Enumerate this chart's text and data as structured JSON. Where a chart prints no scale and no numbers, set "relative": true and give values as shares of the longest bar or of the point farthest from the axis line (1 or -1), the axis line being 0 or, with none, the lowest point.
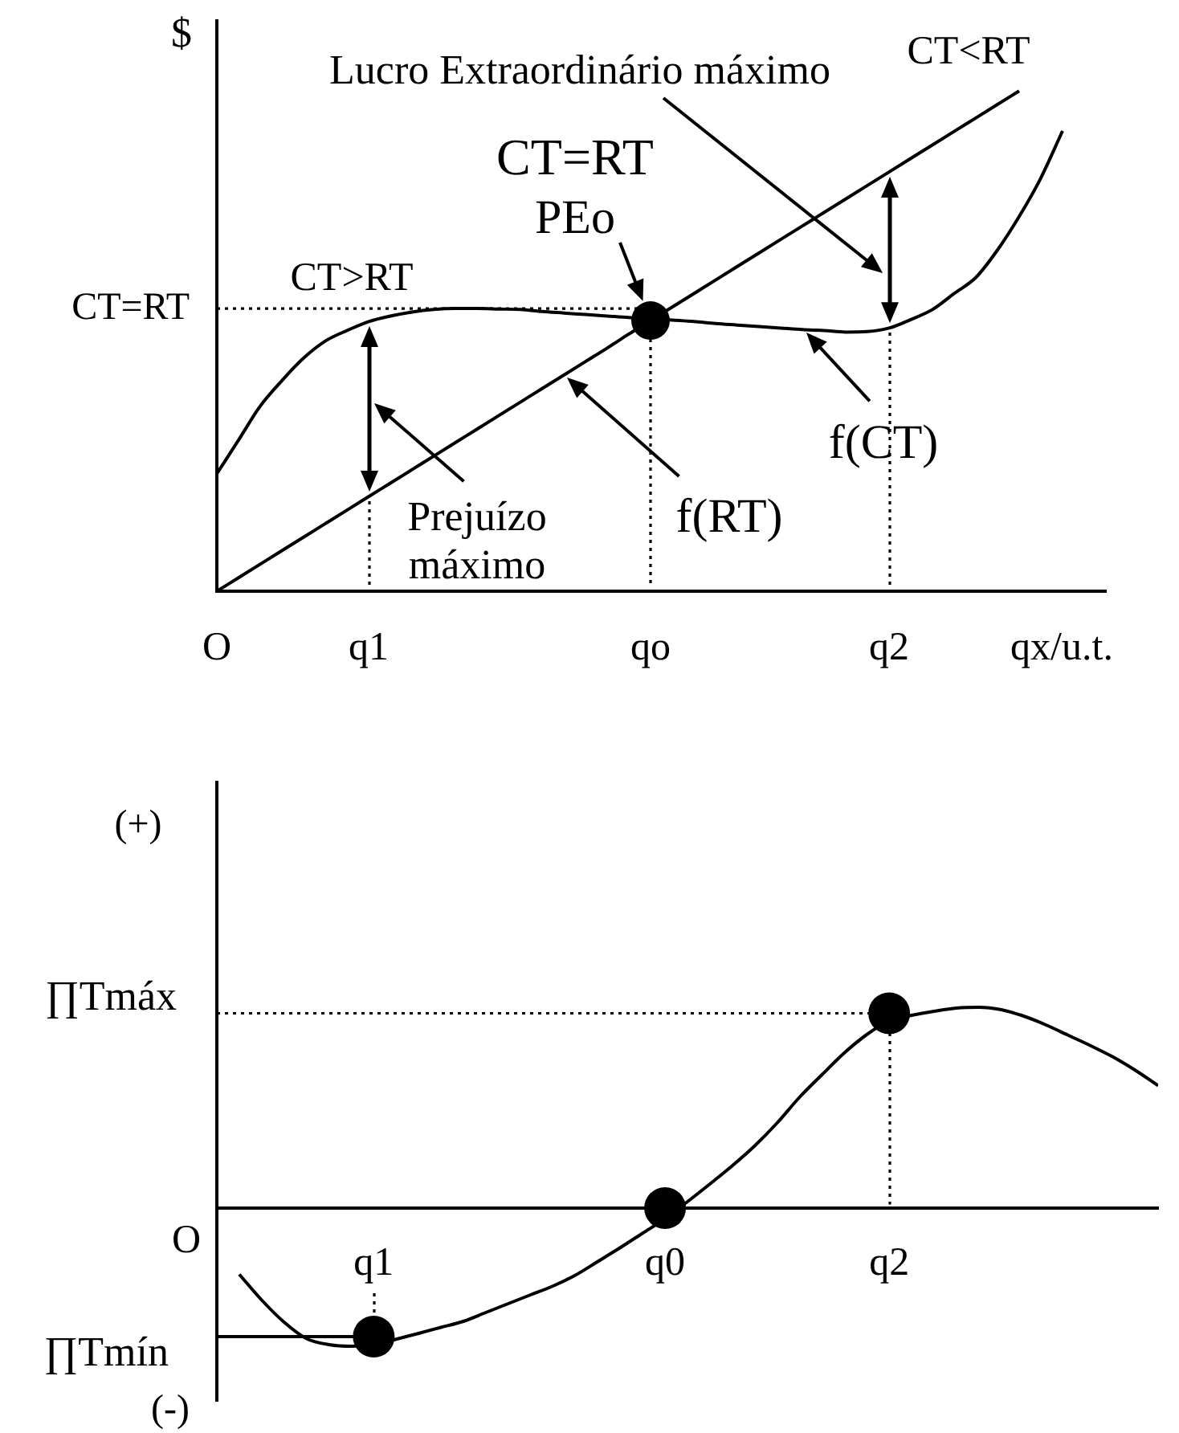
{
  "chart_data": [
    {
      "type": "line",
      "relative": true,
      "ylabel": "$",
      "xlabel": "qx/u.t.",
      "categories": [
        "O",
        null,
        null,
        null,
        null,
        null,
        null,
        "q1",
        null,
        null,
        null,
        null,
        null,
        null,
        null,
        null,
        null,
        null,
        null,
        null,
        "qo",
        null,
        null,
        null,
        null,
        null,
        null,
        null,
        null,
        null,
        null,
        "q2",
        null,
        null,
        null,
        null,
        null,
        null,
        null,
        null,
        null,
        null
      ],
      "series": [
        {
          "type": "line",
          "color": "#000000",
          "values": [
            0,
            0.027,
            0.054,
            0.081,
            0.108,
            0.135,
            0.162,
            0.189,
            0.216,
            0.243,
            0.27,
            0.297,
            0.324,
            0.351,
            0.378,
            0.405,
            0.432,
            0.459,
            0.486,
            0.514,
            0.541,
            0.568,
            0.595,
            0.622,
            0.649,
            0.676,
            0.703,
            0.73,
            0.757,
            0.784,
            0.811,
            0.838,
            0.865,
            0.892,
            0.919,
            0.946,
            0.973,
            1,
            null,
            null,
            null,
            null
          ]
        },
        {
          "type": "line",
          "color": "#000000",
          "values": [
            0.235,
            0.302,
            0.37,
            0.421,
            0.466,
            0.5,
            0.521,
            0.539,
            0.55,
            0.558,
            0.563,
            0.565,
            0.565,
            0.564,
            0.563,
            0.559,
            0.556,
            0.553,
            0.55,
            0.547,
            0.545,
            0.542,
            0.539,
            0.535,
            0.532,
            0.529,
            0.526,
            0.523,
            0.521,
            0.518,
            0.519,
            0.526,
            0.543,
            0.563,
            0.595,
            0.627,
            0.682,
            0.749,
            0.826,
            0.92,
            null,
            null
          ]
        },
        {
          "type": "line",
          "color": "#000000",
          "line_style": "dotted",
          "values": [
            0.565,
            0.565,
            0.565,
            0.565,
            0.565,
            0.565,
            0.565,
            0.565,
            0.565,
            0.565,
            0.565,
            0.565,
            0.565,
            0.565,
            0.565,
            0.565,
            0.565,
            0.565,
            0.565,
            0.565,
            0.565,
            null,
            null,
            null,
            null,
            null,
            null,
            null,
            null,
            null,
            null,
            null,
            null,
            null,
            null,
            null,
            null,
            null,
            null,
            null,
            null,
            null
          ]
        },
        {
          "type": "scatter",
          "color": "#000000",
          "marker": "circle",
          "x": [
            "qo"
          ],
          "values": [
            0.541
          ]
        }
      ],
      "annotations": [
        "Lucro Extraordinário máximo",
        "CT<RT",
        "CT=RT",
        {
          "text": "PEo",
          "x": "qo",
          "y": 0.541
        },
        "CT>RT",
        "Prejuízo máximo",
        "f(RT)",
        "f(CT)",
        "CT=RT"
      ]
    },
    {
      "type": "line",
      "relative": true,
      "categories": [
        null,
        null,
        null,
        null,
        null,
        null,
        null,
        "q1",
        null,
        null,
        null,
        null,
        null,
        null,
        null,
        null,
        null,
        null,
        null,
        null,
        "q0",
        null,
        null,
        null,
        null,
        null,
        null,
        null,
        null,
        null,
        "q2",
        null,
        null,
        null,
        null,
        null,
        null,
        null,
        null,
        null,
        null,
        null,
        null
      ],
      "series": [
        {
          "type": "line",
          "color": "#000000",
          "values": [
            null,
            -0.33,
            -0.458,
            -0.568,
            -0.65,
            -0.68,
            -0.688,
            -0.68,
            -0.653,
            -0.624,
            -0.594,
            -0.564,
            -0.52,
            -0.476,
            -0.432,
            -0.388,
            -0.334,
            -0.266,
            -0.197,
            -0.125,
            -0.053,
            0.032,
            0.12,
            0.211,
            0.31,
            0.424,
            0.552,
            0.664,
            0.773,
            0.864,
            0.932,
            0.96,
            0.98,
            0.996,
            1,
            0.988,
            0.956,
            0.912,
            0.86,
            0.808,
            0.752,
            0.685,
            0.61
          ]
        },
        {
          "type": "line",
          "color": "#000000",
          "line_style": "dotted",
          "values": [
            0.97,
            0.97,
            0.97,
            0.97,
            0.97,
            0.97,
            0.97,
            0.97,
            0.97,
            0.97,
            0.97,
            0.97,
            0.97,
            0.97,
            0.97,
            0.97,
            0.97,
            0.97,
            0.97,
            0.97,
            0.97,
            0.97,
            0.97,
            0.97,
            0.97,
            0.97,
            0.97,
            0.97,
            0.97,
            0.97,
            0.97,
            null,
            null,
            null,
            null,
            null,
            null,
            null,
            null,
            null,
            null,
            null,
            null
          ]
        },
        {
          "type": "line",
          "color": "#000000",
          "values": [
            -0.64,
            -0.64,
            -0.64,
            -0.64,
            -0.64,
            -0.64,
            -0.64,
            -0.64,
            null,
            null,
            null,
            null,
            null,
            null,
            null,
            null,
            null,
            null,
            null,
            null,
            null,
            null,
            null,
            null,
            null,
            null,
            null,
            null,
            null,
            null,
            null,
            null,
            null,
            null,
            null,
            null,
            null,
            null,
            null,
            null,
            null,
            null,
            null
          ]
        },
        {
          "type": "scatter",
          "color": "#000000",
          "marker": "circle",
          "x": [
            "q1",
            "q0",
            "q2"
          ],
          "values": [
            -0.64,
            0,
            0.97
          ]
        }
      ],
      "annotations": [
        "(+)",
        "∏Tmáx",
        "O",
        "∏Tmín",
        "(-)"
      ]
    }
  ]
}
